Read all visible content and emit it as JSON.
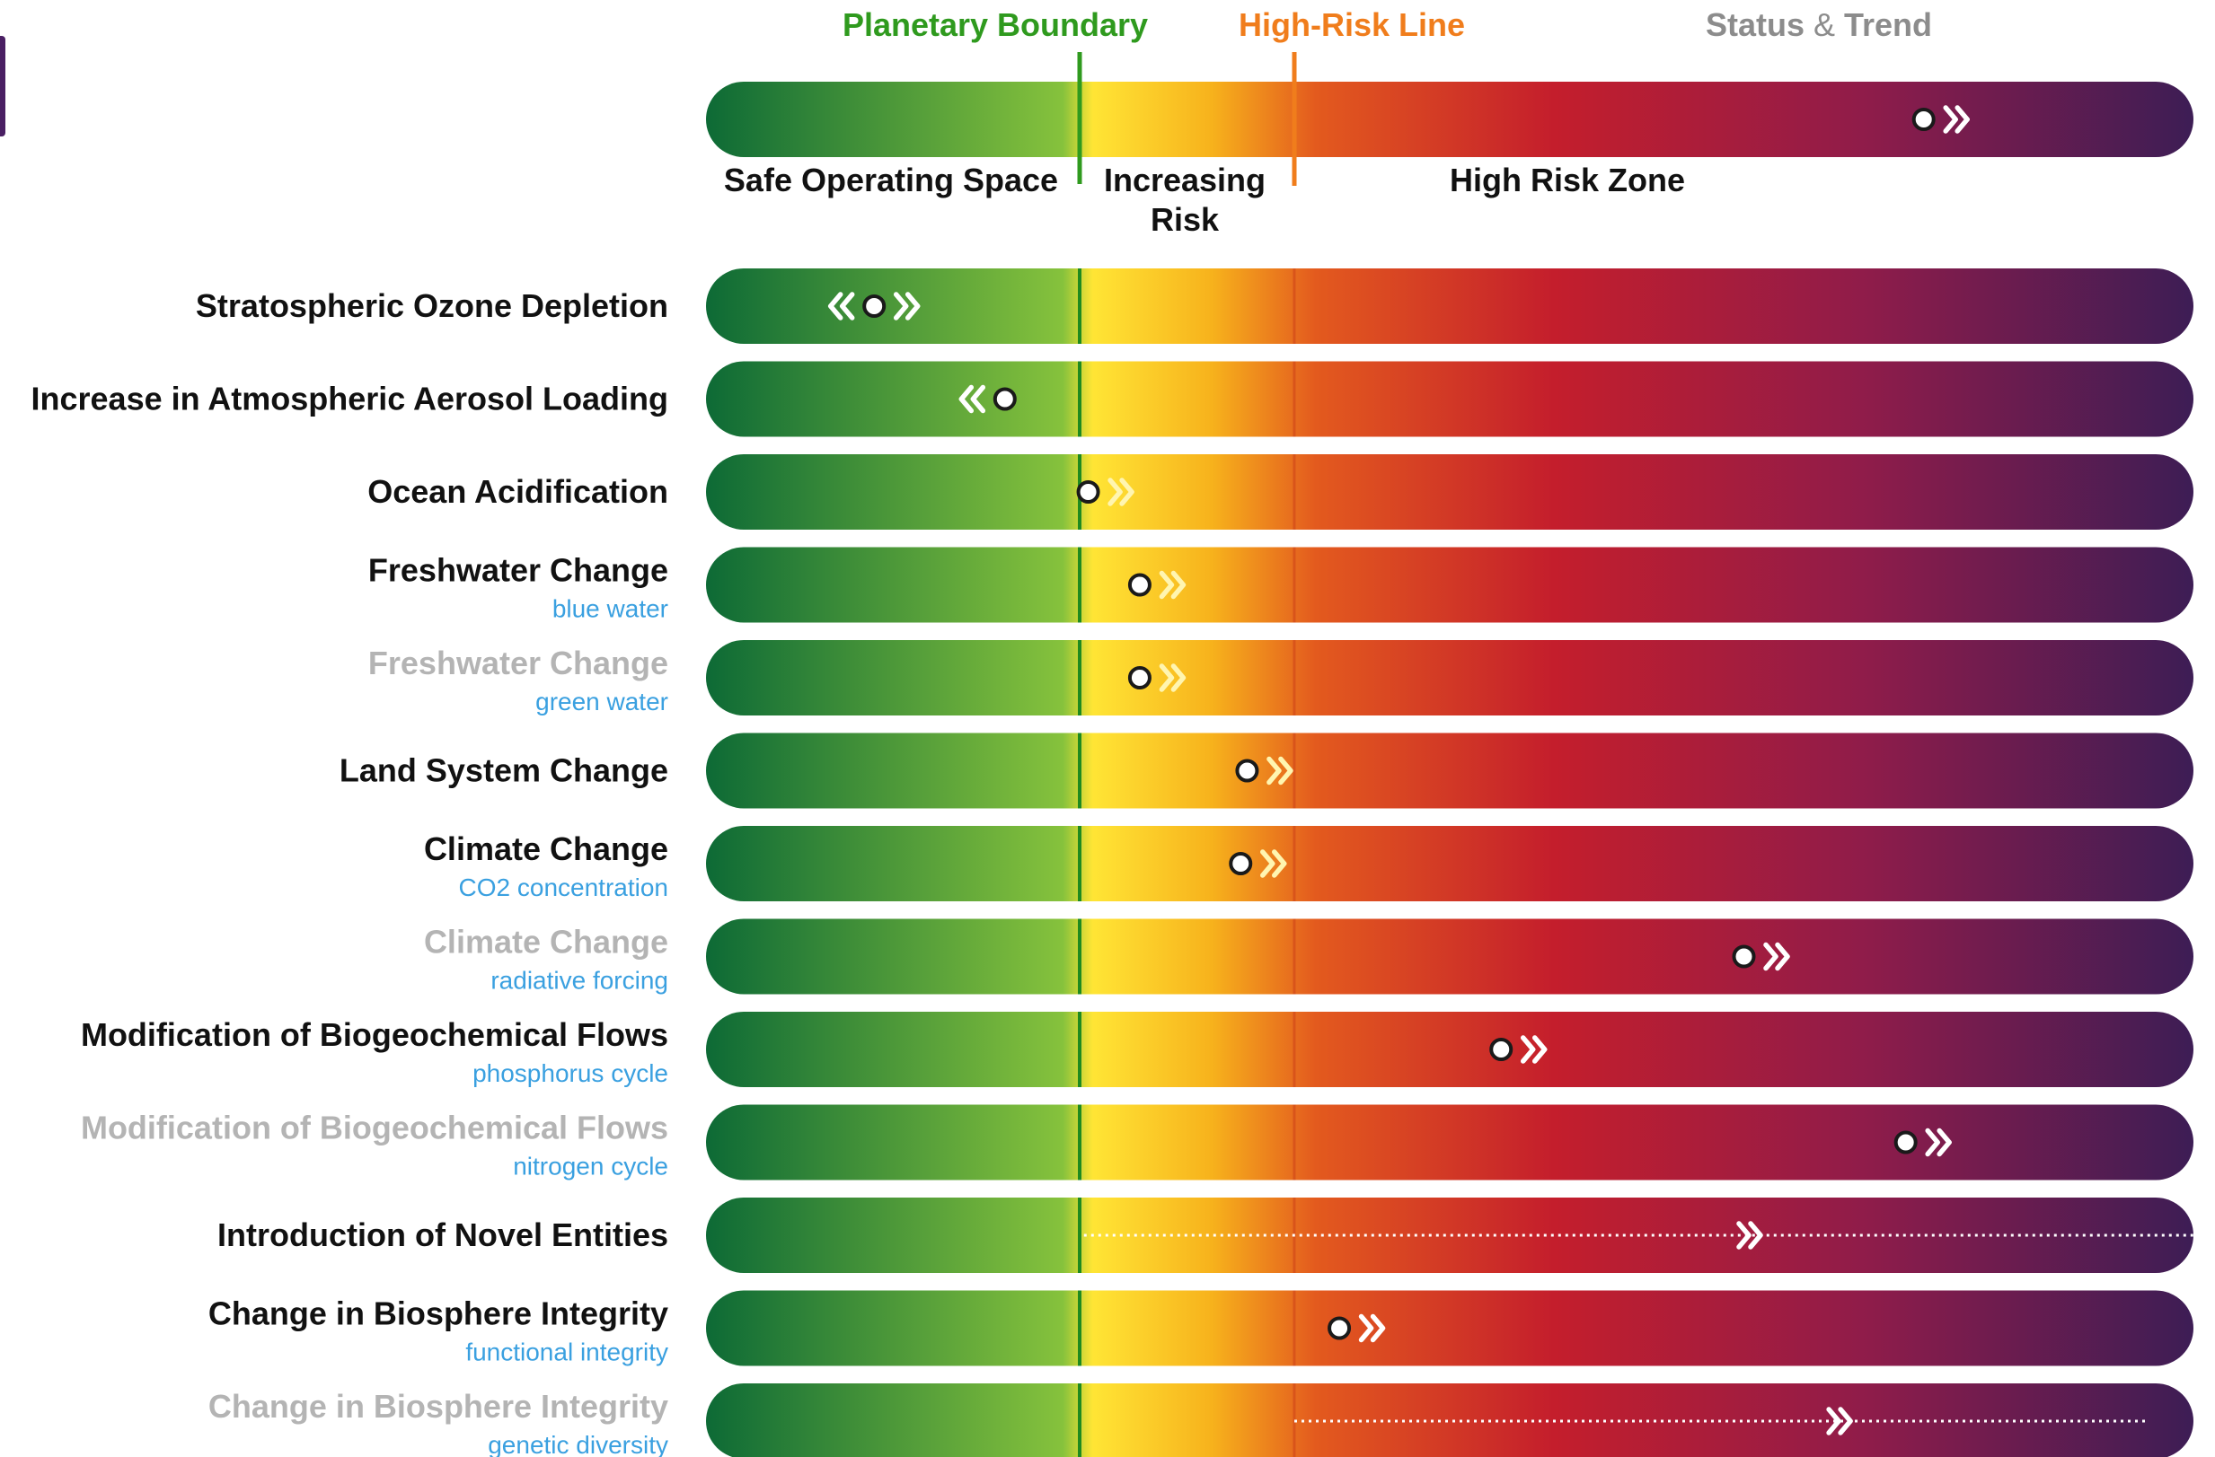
{
  "colors": {
    "boundary": "#2f9a1e",
    "high_risk": "#f07d1c",
    "status_trend_grey": "#8c8c8c",
    "sub_label_blue": "#3aa0e0",
    "primary_label": "#111111",
    "faded_label": "#b4b4b4",
    "gradient": [
      "#0d6a36",
      "#86c23c",
      "#ffe535",
      "#f7b21c",
      "#e35a1e",
      "#c41e2c",
      "#8f1c4a",
      "#3d1d55"
    ]
  },
  "header": {
    "planetary_boundary": "Planetary Boundary",
    "high_risk_line": "High-Risk Line",
    "status": "Status",
    "amp": "&",
    "trend": "Trend"
  },
  "zones": {
    "safe": "Safe Operating Space",
    "increasing_1": "Increasing",
    "increasing_2": "Risk",
    "high": "High Risk Zone"
  },
  "chart_data": {
    "type": "risk_position_scale",
    "x_scale_note": "position on control-variable scale: 0 = left end, 1 = planetary boundary, 2 = high-risk line, 3 = right end",
    "legend_example": {
      "status": 2.7,
      "trend": "increasing"
    },
    "rows": [
      {
        "label": "Stratospheric Ozone Depletion",
        "sublabel": "",
        "status": 0.45,
        "trend": "both",
        "faded": false,
        "icon": "dot-bidirectional"
      },
      {
        "label": "Increase in Atmospheric Aerosol Loading",
        "sublabel": "",
        "status": 0.8,
        "trend": "decreasing",
        "faded": false,
        "icon": "dot-decreasing"
      },
      {
        "label": "Ocean Acidification",
        "sublabel": "",
        "status": 1.04,
        "trend": "increasing",
        "faded": false,
        "icon": "dot-increasing"
      },
      {
        "label": "Freshwater Change",
        "sublabel": "blue water",
        "status": 1.28,
        "trend": "increasing",
        "faded": false,
        "icon": "dot-increasing"
      },
      {
        "label": "Freshwater Change",
        "sublabel": "green water",
        "status": 1.28,
        "trend": "increasing",
        "faded": true,
        "icon": "dot-increasing"
      },
      {
        "label": "Land System Change",
        "sublabel": "",
        "status": 1.78,
        "trend": "increasing",
        "faded": false,
        "icon": "dot-increasing"
      },
      {
        "label": "Climate Change",
        "sublabel": "CO2 concentration",
        "status": 1.75,
        "trend": "increasing",
        "faded": false,
        "icon": "dot-increasing"
      },
      {
        "label": "Climate Change",
        "sublabel": "radiative forcing",
        "status": 2.5,
        "trend": "increasing",
        "faded": true,
        "icon": "dot-increasing"
      },
      {
        "label": "Modification of Biogeochemical Flows",
        "sublabel": "phosphorus cycle",
        "status": 2.23,
        "trend": "increasing",
        "faded": false,
        "icon": "dot-increasing"
      },
      {
        "label": "Modification of Biogeochemical Flows",
        "sublabel": "nitrogen cycle",
        "status": 2.68,
        "trend": "increasing",
        "faded": true,
        "icon": "dot-increasing"
      },
      {
        "label": "Introduction of Novel Entities",
        "sublabel": "",
        "status": null,
        "trend": "increasing",
        "faded": false,
        "icon": "dotted-uncertain",
        "dotted_range": [
          1.02,
          3.0
        ],
        "arrow_at": 2.5
      },
      {
        "label": "Change in Biosphere Integrity",
        "sublabel": "functional integrity",
        "status": 2.05,
        "trend": "increasing",
        "faded": false,
        "icon": "dot-increasing"
      },
      {
        "label": "Change in Biosphere Integrity",
        "sublabel": "genetic diversity",
        "status": null,
        "trend": "increasing",
        "faded": true,
        "icon": "dotted-uncertain",
        "dotted_range": [
          2.0,
          2.95
        ],
        "arrow_at": 2.6
      }
    ]
  }
}
